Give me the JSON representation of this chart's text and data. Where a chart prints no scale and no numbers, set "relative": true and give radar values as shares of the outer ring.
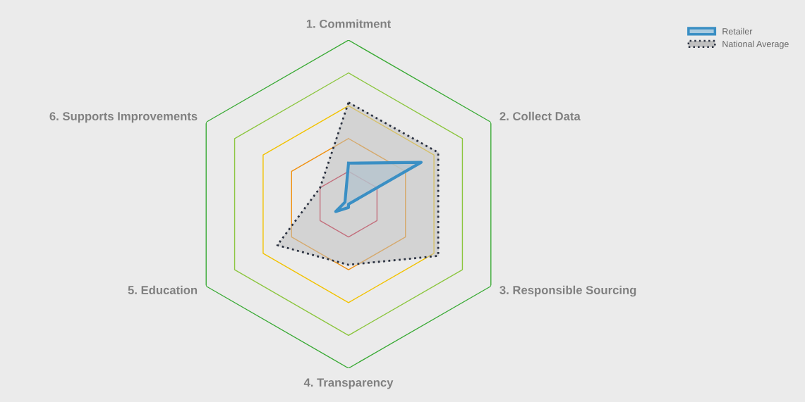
{
  "chart_data": {
    "type": "radar",
    "relative": true,
    "categories": [
      "1. Commitment",
      "2. Collect Data",
      "3. Responsible Sourcing",
      "4. Transparency",
      "5. Education",
      "6. Supports Improvements"
    ],
    "series": [
      {
        "name": "Retailer",
        "color": "#3a8fc4",
        "line_style": "solid",
        "values": [
          0.25,
          0.51,
          0.0,
          0.02,
          0.09,
          0.025
        ]
      },
      {
        "name": "National Average",
        "color": "#2a3140",
        "line_style": "dotted",
        "values": [
          0.62,
          0.63,
          0.63,
          0.37,
          0.5,
          0.2
        ]
      }
    ],
    "grid": true,
    "legend": "top right"
  }
}
